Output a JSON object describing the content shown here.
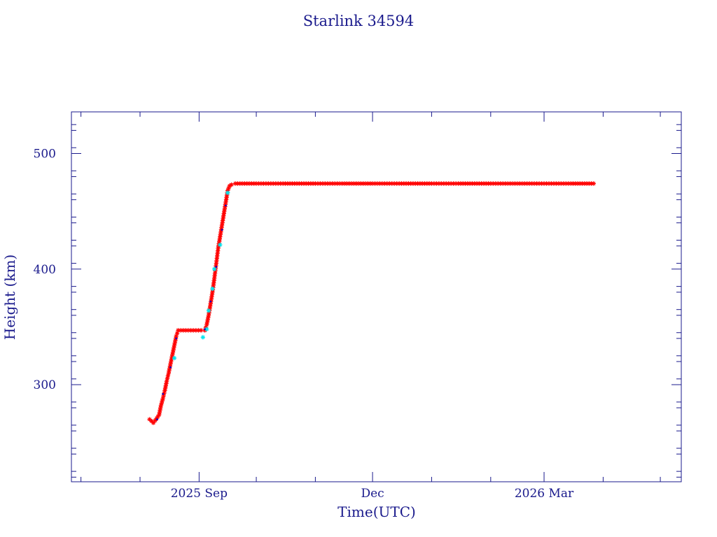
{
  "chart_data": {
    "type": "scatter",
    "title": "Starlink 34594",
    "xlabel": "Time(UTC)",
    "ylabel": "Height (km)",
    "x_date_range": [
      "2025-06-26",
      "2026-05-12"
    ],
    "ylim": [
      216,
      536
    ],
    "y_ticks": [
      300,
      400,
      500
    ],
    "y_tick_labels": [
      "300",
      "400",
      "500"
    ],
    "x_ticks": [
      "2025-09-01",
      "2025-12-01",
      "2026-03-01"
    ],
    "x_tick_labels": [
      "2025 Sep",
      "Dec",
      "2026 Mar"
    ],
    "grid": false,
    "axis_color": "#1a1a8c",
    "series": [
      {
        "color": "#ff0000",
        "marker": "asterisk",
        "points": [
          [
            "2025-08-06",
            270
          ],
          [
            "2025-08-08",
            267
          ],
          [
            "2025-08-09",
            269
          ],
          [
            "2025-08-11",
            274
          ],
          [
            "2025-08-12",
            282
          ],
          [
            "2025-08-13",
            288
          ],
          [
            "2025-08-14",
            295
          ],
          [
            "2025-08-15",
            303
          ],
          [
            "2025-08-16",
            310
          ],
          [
            "2025-08-17",
            318
          ],
          [
            "2025-08-18",
            326
          ],
          [
            "2025-08-19",
            334
          ],
          [
            "2025-08-20",
            342
          ],
          [
            "2025-08-21",
            347
          ],
          [
            "2025-08-25",
            347
          ],
          [
            "2025-08-29",
            347
          ],
          [
            "2025-09-02",
            347
          ],
          [
            "2025-09-04",
            347
          ],
          [
            "2025-09-05",
            352
          ],
          [
            "2025-09-06",
            360
          ],
          [
            "2025-09-07",
            370
          ],
          [
            "2025-09-08",
            380
          ],
          [
            "2025-09-09",
            392
          ],
          [
            "2025-09-10",
            405
          ],
          [
            "2025-09-11",
            418
          ],
          [
            "2025-09-12",
            428
          ],
          [
            "2025-09-13",
            438
          ],
          [
            "2025-09-14",
            448
          ],
          [
            "2025-09-15",
            458
          ],
          [
            "2025-09-16",
            468
          ],
          [
            "2025-09-17",
            472
          ],
          [
            "2025-09-18",
            473
          ],
          [
            "2025-09-20",
            474
          ],
          [
            "2025-10-01",
            474
          ],
          [
            "2025-10-15",
            474
          ],
          [
            "2025-11-01",
            474
          ],
          [
            "2025-11-15",
            474
          ],
          [
            "2025-12-01",
            474
          ],
          [
            "2025-12-15",
            474
          ],
          [
            "2026-01-01",
            474
          ],
          [
            "2026-01-15",
            474
          ],
          [
            "2026-02-01",
            474
          ],
          [
            "2026-02-15",
            474
          ],
          [
            "2026-03-01",
            474
          ],
          [
            "2026-03-15",
            474
          ],
          [
            "2026-03-27",
            474
          ]
        ]
      },
      {
        "color": "#00e5ee",
        "marker": "asterisk",
        "points": [
          [
            "2025-08-19",
            323
          ],
          [
            "2025-09-03",
            341
          ],
          [
            "2025-09-05",
            348
          ],
          [
            "2025-09-06",
            364
          ],
          [
            "2025-09-08",
            383
          ],
          [
            "2025-09-09",
            400
          ],
          [
            "2025-09-12",
            421
          ],
          [
            "2025-09-16",
            466
          ]
        ]
      },
      {
        "color": "#0000cc",
        "marker": "dot",
        "points": [
          [
            "2025-08-10",
            270
          ],
          [
            "2025-08-13",
            292
          ],
          [
            "2025-08-17",
            315
          ],
          [
            "2025-08-20",
            340
          ],
          [
            "2025-09-04",
            348
          ],
          [
            "2025-09-07",
            372
          ],
          [
            "2025-09-10",
            402
          ],
          [
            "2025-09-13",
            434
          ],
          [
            "2025-09-15",
            455
          ]
        ]
      }
    ]
  }
}
